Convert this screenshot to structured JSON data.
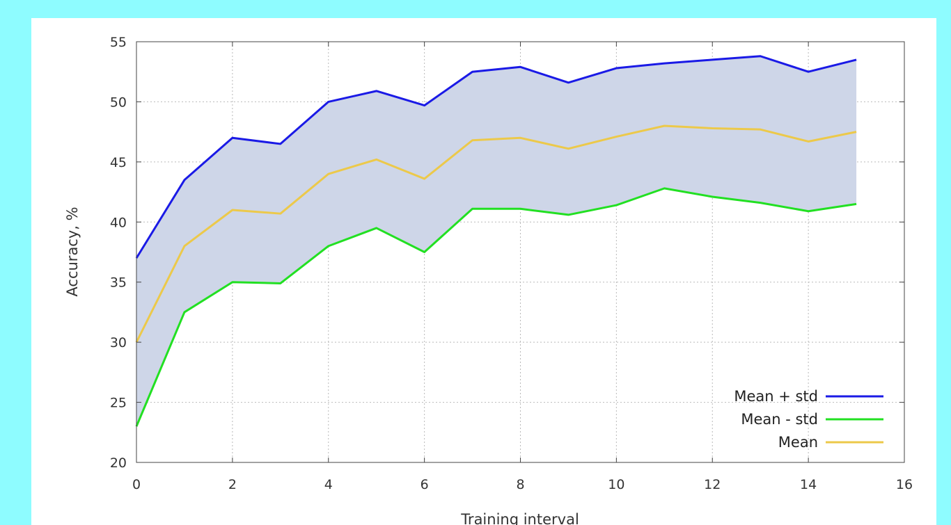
{
  "chart_data": {
    "type": "line",
    "xlabel": "Training interval",
    "ylabel": "Accuracy, %",
    "xlim": [
      0,
      16
    ],
    "ylim": [
      20,
      55
    ],
    "xticks": [
      0,
      2,
      4,
      6,
      8,
      10,
      12,
      14,
      16
    ],
    "yticks": [
      20,
      25,
      30,
      35,
      40,
      45,
      50,
      55
    ],
    "grid": true,
    "legend_position": "bottom-right",
    "band": {
      "between": [
        "Mean + std",
        "Mean - std"
      ],
      "color": "#ced6e8"
    },
    "x": [
      0,
      1,
      2,
      3,
      4,
      5,
      6,
      7,
      8,
      9,
      10,
      11,
      12,
      13,
      14,
      15
    ],
    "series": [
      {
        "name": "Mean + std",
        "color": "#1a1ae6",
        "values": [
          37.0,
          43.5,
          47.0,
          46.5,
          50.0,
          50.9,
          49.7,
          52.5,
          52.9,
          51.6,
          52.8,
          53.2,
          53.5,
          53.8,
          52.5,
          53.5
        ]
      },
      {
        "name": "Mean - std",
        "color": "#22e022",
        "values": [
          23.0,
          32.5,
          35.0,
          34.9,
          38.0,
          39.5,
          37.5,
          41.1,
          41.1,
          40.6,
          41.4,
          42.8,
          42.1,
          41.6,
          40.9,
          41.5
        ]
      },
      {
        "name": "Mean",
        "color": "#ecc94a",
        "values": [
          30.0,
          38.0,
          41.0,
          40.7,
          44.0,
          45.2,
          43.6,
          46.8,
          47.0,
          46.1,
          47.1,
          48.0,
          47.8,
          47.7,
          46.7,
          47.5
        ]
      }
    ]
  }
}
